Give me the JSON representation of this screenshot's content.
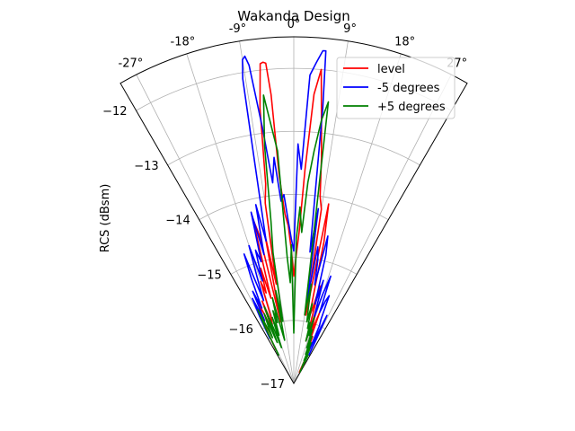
{
  "chart_data": {
    "type": "polar-line",
    "title": "Wakanda Design",
    "rlabel": "RCS (dBsm)",
    "rlim": [
      -17,
      -11.5
    ],
    "thetalim": [
      -30,
      30
    ],
    "theta_ticks": [
      -27,
      -18,
      -9,
      0,
      9,
      18,
      27
    ],
    "theta_tick_labels": [
      "-27°",
      "-18°",
      "-9°",
      "0°",
      "9°",
      "18°",
      "27°"
    ],
    "r_ticks": [
      -17,
      -16,
      -15,
      -14,
      -13,
      -12
    ],
    "r_tick_labels": [
      "−17",
      "−16",
      "−15",
      "−14",
      "−13",
      "−12"
    ],
    "grid": true,
    "legend": "top-right",
    "series": [
      {
        "name": "level",
        "color": "#ff0000",
        "theta": [
          -28,
          -27,
          -26,
          -25,
          -24,
          -23,
          -22,
          -21,
          -20,
          -19,
          -18,
          -17,
          -16,
          -15,
          -14,
          -13,
          -12,
          -11,
          -10,
          -9,
          -8,
          -7,
          -6,
          -5.5,
          -5,
          -4.5,
          -4,
          -3,
          -2,
          -1,
          0,
          1,
          2,
          3,
          4,
          5,
          6,
          7,
          8,
          9,
          10,
          11,
          12,
          13,
          14,
          15,
          16,
          17,
          18,
          19,
          20,
          21,
          22,
          23,
          24,
          25,
          26,
          27,
          28
        ],
        "r": [
          -16.4,
          -16.1,
          -15.8,
          -15.9,
          -15.6,
          -15.8,
          -16.2,
          -15.6,
          -16.0,
          -15.9,
          -15.3,
          -15.5,
          -15.1,
          -15.6,
          -14.3,
          -14.6,
          -16.0,
          -14.6,
          -15.4,
          -14.1,
          -13.8,
          -12.6,
          -11.9,
          -11.88,
          -11.9,
          -12.4,
          -13.7,
          -14.3,
          -14.5,
          -14.9,
          -15.3,
          -15.0,
          -14.6,
          -13.6,
          -12.4,
          -12.0,
          -12.8,
          -13.4,
          -14.0,
          -14.2,
          -15.9,
          -14.1,
          -14.7,
          -15.9,
          -15.8,
          -15.4,
          -16.3,
          -15.8,
          -16.0,
          -16.1,
          -15.8,
          -16.4,
          -16.2,
          -16.5,
          -16.3,
          -16.5,
          -16.8,
          -16.6,
          -16.7
        ]
      },
      {
        "name": "-5 degrees",
        "color": "#0000ff",
        "theta": [
          -28,
          -27,
          -26,
          -25,
          -24,
          -23,
          -22,
          -21,
          -20,
          -19,
          -18,
          -17,
          -16,
          -15,
          -14,
          -13,
          -12,
          -11,
          -10,
          -9.5,
          -9,
          -8.5,
          -8,
          -7,
          -6,
          -5,
          -4,
          -3,
          -2,
          -1,
          0,
          1,
          2,
          3,
          4,
          5,
          5.5,
          6,
          7,
          8,
          9,
          10,
          11,
          12,
          13,
          14,
          15,
          16,
          17,
          18,
          19,
          20,
          21,
          22,
          23,
          24,
          25,
          26,
          27,
          28
        ],
        "r": [
          -16.2,
          -15.8,
          -15.5,
          -15.9,
          -15.4,
          -15.7,
          -15.2,
          -14.8,
          -15.6,
          -15.2,
          -14.7,
          -15.3,
          -14.8,
          -15.0,
          -14.2,
          -14.9,
          -14.1,
          -14.7,
          -13.4,
          -12.1,
          -11.8,
          -11.75,
          -11.9,
          -12.9,
          -13.8,
          -13.4,
          -14.1,
          -14.0,
          -14.4,
          -14.7,
          -14.9,
          -13.2,
          -13.6,
          -12.1,
          -11.9,
          -11.7,
          -11.7,
          -12.6,
          -14.9,
          -14.2,
          -15.7,
          -14.8,
          -15.0,
          -15.4,
          -14.6,
          -14.9,
          -15.7,
          -15.3,
          -15.9,
          -15.5,
          -15.2,
          -15.8,
          -15.6,
          -15.5,
          -15.9,
          -16.0,
          -16.4,
          -15.8,
          -16.2,
          -16.5
        ]
      },
      {
        "name": "+5 degrees",
        "color": "#008000",
        "theta": [
          -28,
          -27,
          -26,
          -25,
          -24,
          -23,
          -22,
          -21,
          -20,
          -19,
          -18,
          -17,
          -16,
          -15,
          -14,
          -13,
          -12,
          -11,
          -10,
          -9,
          -8,
          -7,
          -6,
          -5,
          -4,
          -3,
          -2,
          -1,
          0,
          1,
          2,
          3,
          4,
          5,
          6,
          7,
          8,
          9,
          10,
          11,
          12,
          13,
          14,
          15,
          16,
          17,
          18,
          19,
          20,
          21,
          22,
          23,
          24,
          25,
          26,
          27,
          28
        ],
        "r": [
          -16.5,
          -16.0,
          -15.7,
          -16.2,
          -16.0,
          -15.8,
          -16.3,
          -15.7,
          -16.1,
          -16.4,
          -15.9,
          -16.2,
          -15.8,
          -16.0,
          -15.6,
          -16.1,
          -16.3,
          -15.5,
          -16.0,
          -14.9,
          -14.4,
          -13.2,
          -12.4,
          -12.9,
          -13.3,
          -15.0,
          -15.4,
          -14.8,
          -16.2,
          -14.7,
          -14.2,
          -14.6,
          -13.8,
          -13.3,
          -12.8,
          -12.5,
          -15.2,
          -15.9,
          -15.4,
          -15.8,
          -16.0,
          -15.7,
          -16.1,
          -16.0,
          -16.3,
          -15.9,
          -16.2,
          -16.1,
          -16.4,
          -16.2,
          -16.5,
          -16.3,
          -16.6,
          -16.4,
          -16.7,
          -16.5,
          -16.8
        ]
      }
    ]
  }
}
